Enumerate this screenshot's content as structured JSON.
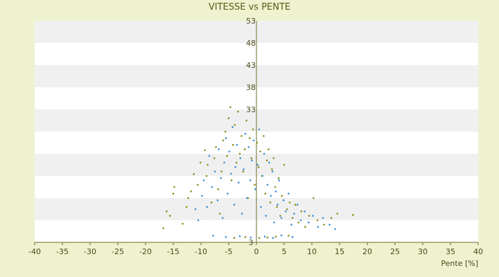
{
  "chart_data": {
    "type": "scatter",
    "title": "VITESSE vs PENTE",
    "xlabel": "Pente [%]",
    "ylabel": "",
    "xlim": [
      -40,
      40
    ],
    "ylim": [
      3,
      53
    ],
    "x_ticks": [
      -40,
      -35,
      -30,
      -25,
      -20,
      -15,
      -10,
      -5,
      0,
      5,
      10,
      15,
      20,
      25,
      30,
      35,
      40
    ],
    "y_ticks": [
      3,
      8,
      13,
      18,
      23,
      28,
      33,
      38,
      43,
      48,
      53
    ],
    "y_tick_labels": [
      "3",
      "",
      "",
      "",
      "",
      "",
      "33",
      "38",
      "43",
      "48",
      "53"
    ],
    "grid": "horizontal alternating bands",
    "legend": "none",
    "colors": {
      "series_olive": "#8c8c14",
      "series_blue": "#3a8fd6",
      "band_light": "#ffffff",
      "band_dark": "#f0f0f0",
      "axis": "#6b6b2a",
      "background": "#eef2cf"
    },
    "series": [
      {
        "color": "#8c8c14",
        "points": [
          [
            -16.8,
            6.2
          ],
          [
            -16.2,
            10.0
          ],
          [
            -15.6,
            9.0
          ],
          [
            -15.0,
            14.0
          ],
          [
            -14.8,
            15.5
          ],
          [
            -13.3,
            7.2
          ],
          [
            -12.6,
            11.0
          ],
          [
            -12.3,
            13.0
          ],
          [
            -11.8,
            14.5
          ],
          [
            -11.3,
            18.4
          ],
          [
            -10.6,
            16.0
          ],
          [
            -10.1,
            21.0
          ],
          [
            -9.3,
            23.8
          ],
          [
            -9.0,
            18.0
          ],
          [
            -8.8,
            20.5
          ],
          [
            -8.1,
            12.0
          ],
          [
            -7.6,
            22.0
          ],
          [
            -7.3,
            24.5
          ],
          [
            -6.9,
            15.0
          ],
          [
            -6.6,
            9.5
          ],
          [
            -6.3,
            19.0
          ],
          [
            -6.0,
            26.0
          ],
          [
            -5.6,
            28.0
          ],
          [
            -5.3,
            22.5
          ],
          [
            -5.0,
            31.0
          ],
          [
            -4.7,
            33.5
          ],
          [
            -4.5,
            17.0
          ],
          [
            -4.2,
            25.0
          ],
          [
            -3.9,
            29.5
          ],
          [
            -3.6,
            21.0
          ],
          [
            -3.3,
            32.5
          ],
          [
            -3.0,
            23.0
          ],
          [
            -2.7,
            27.0
          ],
          [
            -2.4,
            19.0
          ],
          [
            -2.1,
            24.0
          ],
          [
            -1.8,
            30.5
          ],
          [
            -1.5,
            13.0
          ],
          [
            -1.2,
            26.5
          ],
          [
            -0.9,
            22.0
          ],
          [
            -0.6,
            28.5
          ],
          [
            -0.3,
            16.0
          ],
          [
            0.1,
            25.5
          ],
          [
            0.4,
            20.0
          ],
          [
            0.7,
            23.5
          ],
          [
            1.0,
            18.0
          ],
          [
            1.3,
            27.0
          ],
          [
            1.6,
            14.0
          ],
          [
            1.9,
            21.5
          ],
          [
            2.2,
            24.0
          ],
          [
            2.5,
            12.0
          ],
          [
            2.8,
            19.5
          ],
          [
            3.1,
            22.0
          ],
          [
            3.4,
            15.5
          ],
          [
            3.7,
            11.0
          ],
          [
            4.0,
            17.5
          ],
          [
            4.3,
            9.0
          ],
          [
            4.6,
            13.5
          ],
          [
            5.0,
            20.5
          ],
          [
            5.5,
            10.5
          ],
          [
            6.0,
            12.0
          ],
          [
            6.5,
            8.5
          ],
          [
            7.0,
            11.5
          ],
          [
            7.6,
            7.5
          ],
          [
            8.1,
            10.0
          ],
          [
            8.8,
            6.5
          ],
          [
            9.5,
            9.0
          ],
          [
            10.3,
            13.0
          ],
          [
            11.0,
            8.0
          ],
          [
            12.2,
            7.0
          ],
          [
            13.5,
            8.5
          ],
          [
            14.6,
            9.5
          ],
          [
            17.4,
            9.2
          ],
          [
            -4.0,
            4.0
          ],
          [
            -2.0,
            4.2
          ],
          [
            0.5,
            4.0
          ],
          [
            2.0,
            4.1
          ],
          [
            3.5,
            4.3
          ],
          [
            5.8,
            4.5
          ]
        ]
      },
      {
        "color": "#3a8fd6",
        "points": [
          [
            -11.0,
            10.5
          ],
          [
            -10.5,
            8.0
          ],
          [
            -9.8,
            13.5
          ],
          [
            -9.5,
            17.0
          ],
          [
            -8.9,
            11.0
          ],
          [
            -8.5,
            22.5
          ],
          [
            -8.0,
            15.5
          ],
          [
            -7.5,
            19.0
          ],
          [
            -7.0,
            12.5
          ],
          [
            -6.8,
            24.0
          ],
          [
            -6.4,
            17.5
          ],
          [
            -6.1,
            8.5
          ],
          [
            -5.8,
            21.0
          ],
          [
            -5.5,
            26.5
          ],
          [
            -5.2,
            14.0
          ],
          [
            -4.9,
            23.5
          ],
          [
            -4.6,
            18.5
          ],
          [
            -4.3,
            29.0
          ],
          [
            -4.0,
            11.5
          ],
          [
            -3.8,
            20.0
          ],
          [
            -3.5,
            25.0
          ],
          [
            -3.2,
            16.5
          ],
          [
            -2.9,
            22.0
          ],
          [
            -2.6,
            9.5
          ],
          [
            -2.3,
            19.5
          ],
          [
            -2.0,
            27.5
          ],
          [
            -1.7,
            13.0
          ],
          [
            -1.4,
            24.5
          ],
          [
            -1.1,
            17.0
          ],
          [
            -0.8,
            21.5
          ],
          [
            -0.5,
            26.0
          ],
          [
            -0.2,
            15.0
          ],
          [
            0.2,
            20.5
          ],
          [
            0.5,
            28.5
          ],
          [
            0.8,
            11.0
          ],
          [
            1.1,
            18.0
          ],
          [
            1.4,
            23.0
          ],
          [
            1.7,
            9.0
          ],
          [
            2.0,
            16.0
          ],
          [
            2.3,
            21.0
          ],
          [
            2.6,
            13.5
          ],
          [
            2.9,
            19.0
          ],
          [
            3.2,
            7.5
          ],
          [
            3.5,
            14.5
          ],
          [
            3.8,
            11.5
          ],
          [
            4.1,
            17.0
          ],
          [
            4.5,
            8.5
          ],
          [
            4.9,
            12.5
          ],
          [
            5.3,
            10.0
          ],
          [
            5.8,
            14.0
          ],
          [
            6.3,
            7.0
          ],
          [
            6.8,
            9.5
          ],
          [
            7.4,
            11.5
          ],
          [
            8.0,
            8.0
          ],
          [
            8.7,
            10.0
          ],
          [
            9.4,
            7.5
          ],
          [
            10.2,
            9.0
          ],
          [
            11.1,
            6.5
          ],
          [
            12.0,
            8.5
          ],
          [
            13.2,
            7.0
          ],
          [
            14.2,
            6.0
          ],
          [
            -7.8,
            4.5
          ],
          [
            -5.5,
            4.2
          ],
          [
            -3.0,
            4.4
          ],
          [
            -1.0,
            4.1
          ],
          [
            1.5,
            4.3
          ],
          [
            3.0,
            4.0
          ],
          [
            4.5,
            4.6
          ],
          [
            6.5,
            4.2
          ]
        ]
      }
    ]
  }
}
